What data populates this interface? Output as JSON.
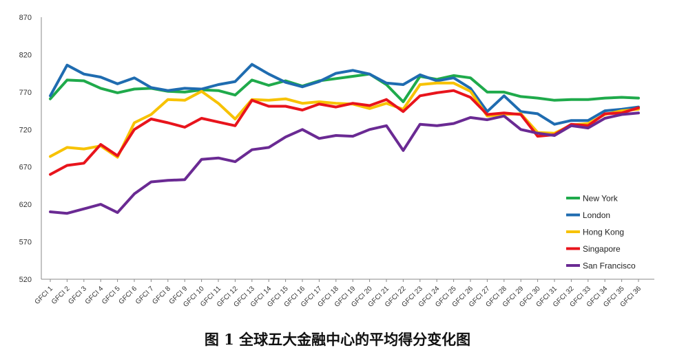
{
  "caption": "图 1  全球五大金融中心的平均得分变化图",
  "chart_data": {
    "type": "line",
    "title": "",
    "xlabel": "",
    "ylabel": "",
    "ylim": [
      520,
      870
    ],
    "yticks": [
      520,
      570,
      620,
      670,
      720,
      770,
      820,
      870
    ],
    "grid": false,
    "legend_position": "bottom-right",
    "categories": [
      "GFCI 1",
      "GFCI 2",
      "GFCI 3",
      "GFCI 4",
      "GFCI 5",
      "GFCI 6",
      "GFCI 7",
      "GFCI 8",
      "GFCI 9",
      "GFCI 10",
      "GFCI 11",
      "GFCI 12",
      "GFCI 13",
      "GFCI 14",
      "GFCI 15",
      "GFCI 16",
      "GFCI 17",
      "GFCI 18",
      "GFCI 19",
      "GFCI 20",
      "GFCI 21",
      "GFCI 22",
      "GFCI 23",
      "GFCI 24",
      "GFCI 25",
      "GFCI 26",
      "GFCI 27",
      "GFCI 28",
      "GFCI 29",
      "GFCI 30",
      "GFCI 31",
      "GFCI 32",
      "GFCI 33",
      "GFCI 34",
      "GFCI 35",
      "GFCI 36"
    ],
    "series": [
      {
        "name": "New York",
        "color": "#1faa4b",
        "values": [
          761,
          786,
          785,
          775,
          769,
          774,
          775,
          771,
          770,
          773,
          772,
          766,
          786,
          779,
          785,
          778,
          785,
          788,
          791,
          794,
          780,
          757,
          791,
          787,
          792,
          789,
          770,
          770,
          764,
          762,
          759,
          760,
          760,
          762,
          763,
          762
        ]
      },
      {
        "name": "London",
        "color": "#1f6cb0",
        "values": [
          765,
          806,
          794,
          790,
          781,
          789,
          776,
          772,
          775,
          774,
          780,
          784,
          807,
          794,
          783,
          777,
          784,
          795,
          799,
          794,
          782,
          780,
          793,
          785,
          789,
          775,
          744,
          765,
          744,
          741,
          727,
          732,
          732,
          745,
          747,
          750
        ]
      },
      {
        "name": "Hong Kong",
        "color": "#f7c200",
        "values": [
          684,
          696,
          694,
          698,
          683,
          729,
          740,
          760,
          759,
          771,
          755,
          734,
          760,
          759,
          761,
          755,
          757,
          755,
          754,
          748,
          755,
          747,
          780,
          782,
          782,
          771,
          738,
          740,
          741,
          716,
          715,
          726,
          728,
          740,
          745,
          747
        ]
      },
      {
        "name": "Singapore",
        "color": "#e8141c",
        "values": [
          660,
          672,
          675,
          700,
          685,
          720,
          734,
          729,
          723,
          735,
          730,
          725,
          759,
          751,
          751,
          746,
          754,
          750,
          755,
          752,
          760,
          744,
          765,
          769,
          772,
          763,
          740,
          742,
          740,
          711,
          713,
          727,
          725,
          741,
          742,
          749
        ]
      },
      {
        "name": "San Francisco",
        "color": "#6a2a93",
        "values": [
          610,
          608,
          614,
          620,
          609,
          634,
          650,
          652,
          653,
          680,
          682,
          677,
          693,
          696,
          710,
          720,
          708,
          712,
          711,
          720,
          725,
          692,
          727,
          725,
          728,
          736,
          733,
          738,
          720,
          715,
          712,
          725,
          722,
          735,
          740,
          742
        ]
      }
    ]
  }
}
